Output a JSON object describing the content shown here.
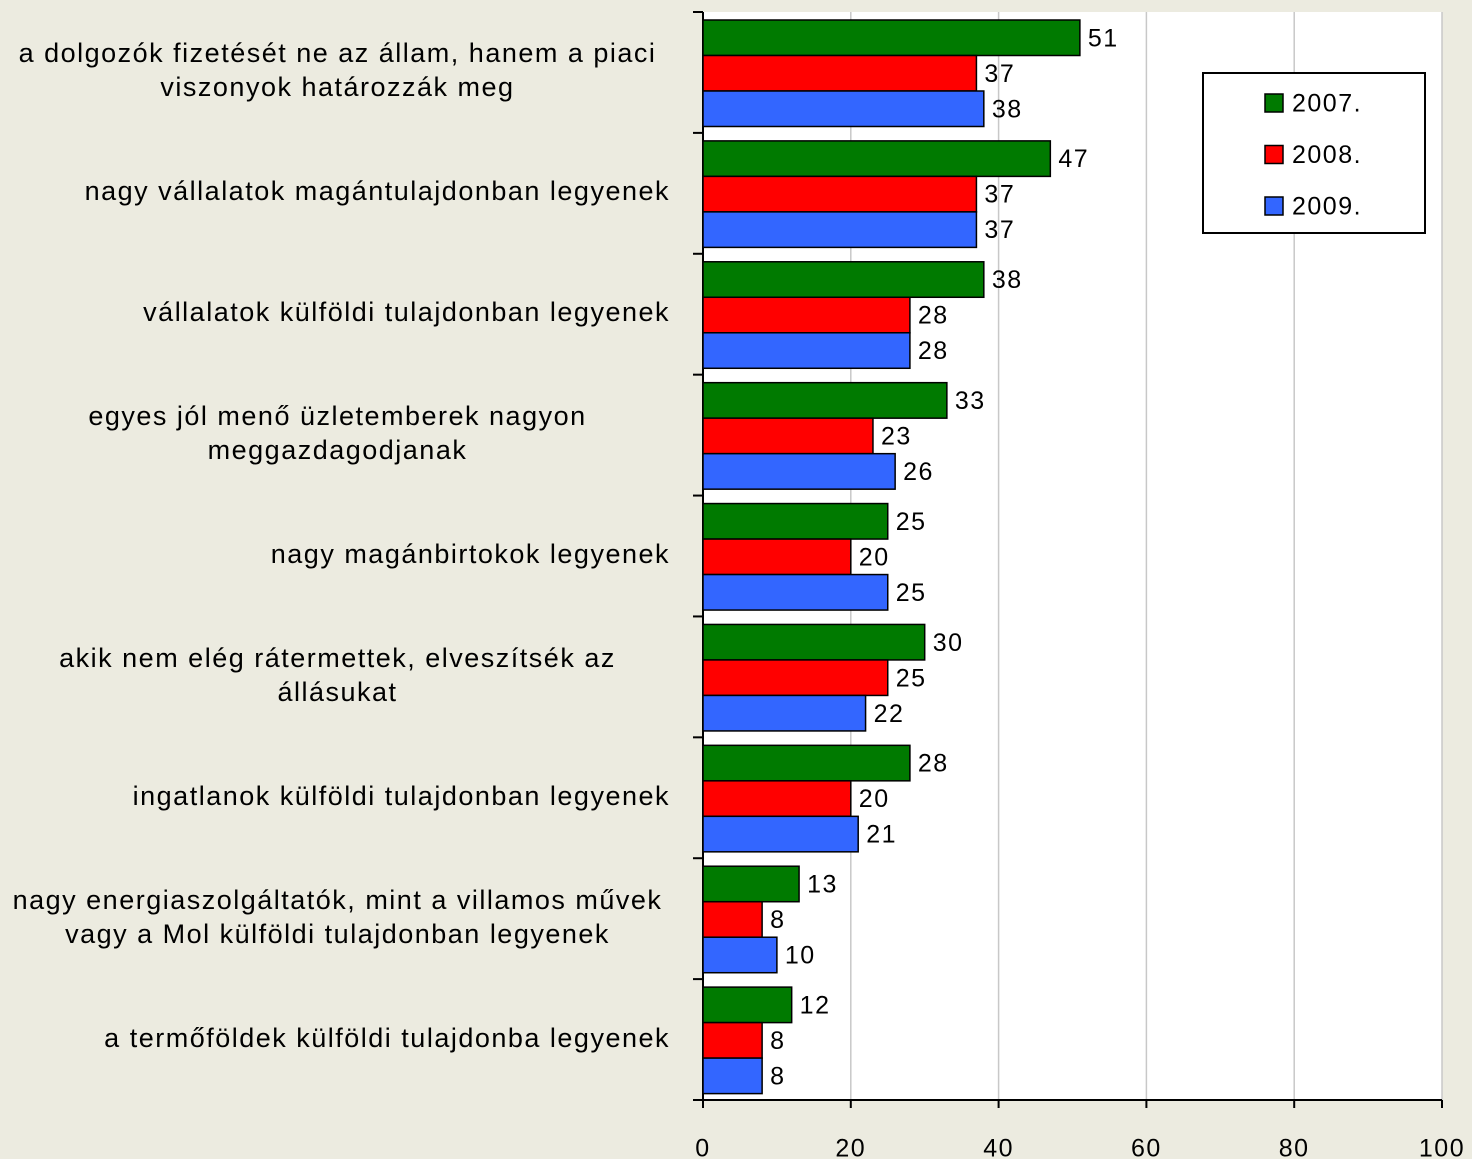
{
  "chart_data": {
    "type": "barh",
    "categories": [
      "a dolgozók fizetését ne az állam, hanem a piaci viszonyok határozzák meg",
      "nagy vállalatok magántulajdonban legyenek",
      "vállalatok külföldi tulajdonban legyenek",
      "egyes jól menő üzletemberek nagyon meggazdagodjanak",
      "nagy magánbirtokok legyenek",
      "akik nem elég rátermettek, elveszítsék az állásukat",
      "ingatlanok külföldi tulajdonban legyenek",
      "nagy energiaszolgáltatók, mint a villamos művek vagy a Mol külföldi tulajdonban legyenek",
      "a termőföldek külföldi tulajdonba legyenek"
    ],
    "series": [
      {
        "name": "2007.",
        "color": "#007a00",
        "values": [
          51,
          47,
          38,
          33,
          25,
          30,
          28,
          13,
          12
        ]
      },
      {
        "name": "2008.",
        "color": "#ff0000",
        "values": [
          37,
          37,
          28,
          23,
          20,
          25,
          20,
          8,
          8
        ]
      },
      {
        "name": "2009.",
        "color": "#3366ff",
        "values": [
          38,
          37,
          28,
          26,
          25,
          22,
          21,
          10,
          8
        ]
      }
    ],
    "xlim": [
      0,
      100
    ],
    "xticks": [
      0,
      20,
      40,
      60,
      80,
      100
    ],
    "grid": true,
    "legend": "top-right"
  }
}
